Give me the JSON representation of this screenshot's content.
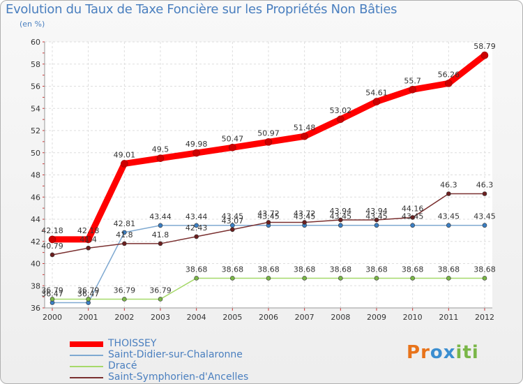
{
  "header": {
    "title": "Evolution du Taux de Taxe Foncière sur les Propriétés Non Bâties",
    "subtitle": "(en %)"
  },
  "logo": {
    "text": "Proxiti",
    "colors": [
      "#e8731a",
      "#3b8ed0",
      "#7ab648"
    ]
  },
  "chart_data": {
    "type": "line",
    "title": "Evolution du Taux de Taxe Foncière sur les Propriétés Non Bâties",
    "ylabel": "(en %)",
    "xlabel": "",
    "ylim": [
      36,
      60
    ],
    "yticks": [
      36,
      38,
      40,
      42,
      44,
      46,
      48,
      50,
      52,
      54,
      56,
      58,
      60
    ],
    "grid": true,
    "legend_position": "bottom-left",
    "x": [
      "2000",
      "2001",
      "2002",
      "2003",
      "2004",
      "2005",
      "2006",
      "2007",
      "2008",
      "2009",
      "2010",
      "2011",
      "2012"
    ],
    "series": [
      {
        "name": "THOISSEY",
        "color": "#ff0000",
        "marker": "#cc0000",
        "thick": true,
        "values": [
          42.18,
          42.18,
          49.01,
          49.5,
          49.98,
          50.47,
          50.97,
          51.48,
          53.02,
          54.61,
          55.7,
          56.26,
          58.79
        ],
        "labels": [
          "42.18",
          "42.18",
          "49.01",
          "49.5",
          "49.98",
          "50.47",
          "50.97",
          "51.48",
          "53.02",
          "54.61",
          "55.7",
          "56.26",
          "58.79"
        ]
      },
      {
        "name": "Saint-Didier-sur-Chalaronne",
        "color": "#7fa9d1",
        "marker": "#3b7fc4",
        "thick": false,
        "values": [
          36.47,
          36.47,
          42.81,
          43.44,
          43.44,
          43.45,
          43.45,
          43.45,
          43.45,
          43.45,
          43.45,
          43.45,
          43.45
        ],
        "labels": [
          "36.47",
          "36.47",
          "42.81",
          "43.44",
          "43.44",
          "43.45",
          "43.45",
          "43.45",
          "43.45",
          "43.45",
          "43.45",
          "43.45",
          "43.45"
        ]
      },
      {
        "name": "Dracé",
        "color": "#a6d96a",
        "marker": "#7ab648",
        "thick": false,
        "values": [
          36.79,
          36.79,
          36.79,
          36.79,
          38.68,
          38.68,
          38.68,
          38.68,
          38.68,
          38.68,
          38.68,
          38.68,
          38.68
        ],
        "labels": [
          "36.79",
          "36.79",
          "36.79",
          "36.79",
          "38.68",
          "38.68",
          "38.68",
          "38.68",
          "38.68",
          "38.68",
          "38.68",
          "38.68",
          "38.68"
        ]
      },
      {
        "name": "Saint-Symphorien-d'Ancelles",
        "color": "#7a3030",
        "marker": "#6b1f1f",
        "thick": false,
        "values": [
          40.79,
          41.4,
          41.8,
          41.8,
          42.43,
          43.07,
          43.72,
          43.72,
          43.94,
          43.94,
          44.16,
          46.3,
          46.3
        ],
        "labels": [
          "40.79",
          "41.4",
          "41.8",
          "41.8",
          "42.43",
          "43.07",
          "43.72",
          "43.72",
          "43.94",
          "43.94",
          "44.16",
          "46.3",
          "46.3"
        ]
      }
    ]
  }
}
